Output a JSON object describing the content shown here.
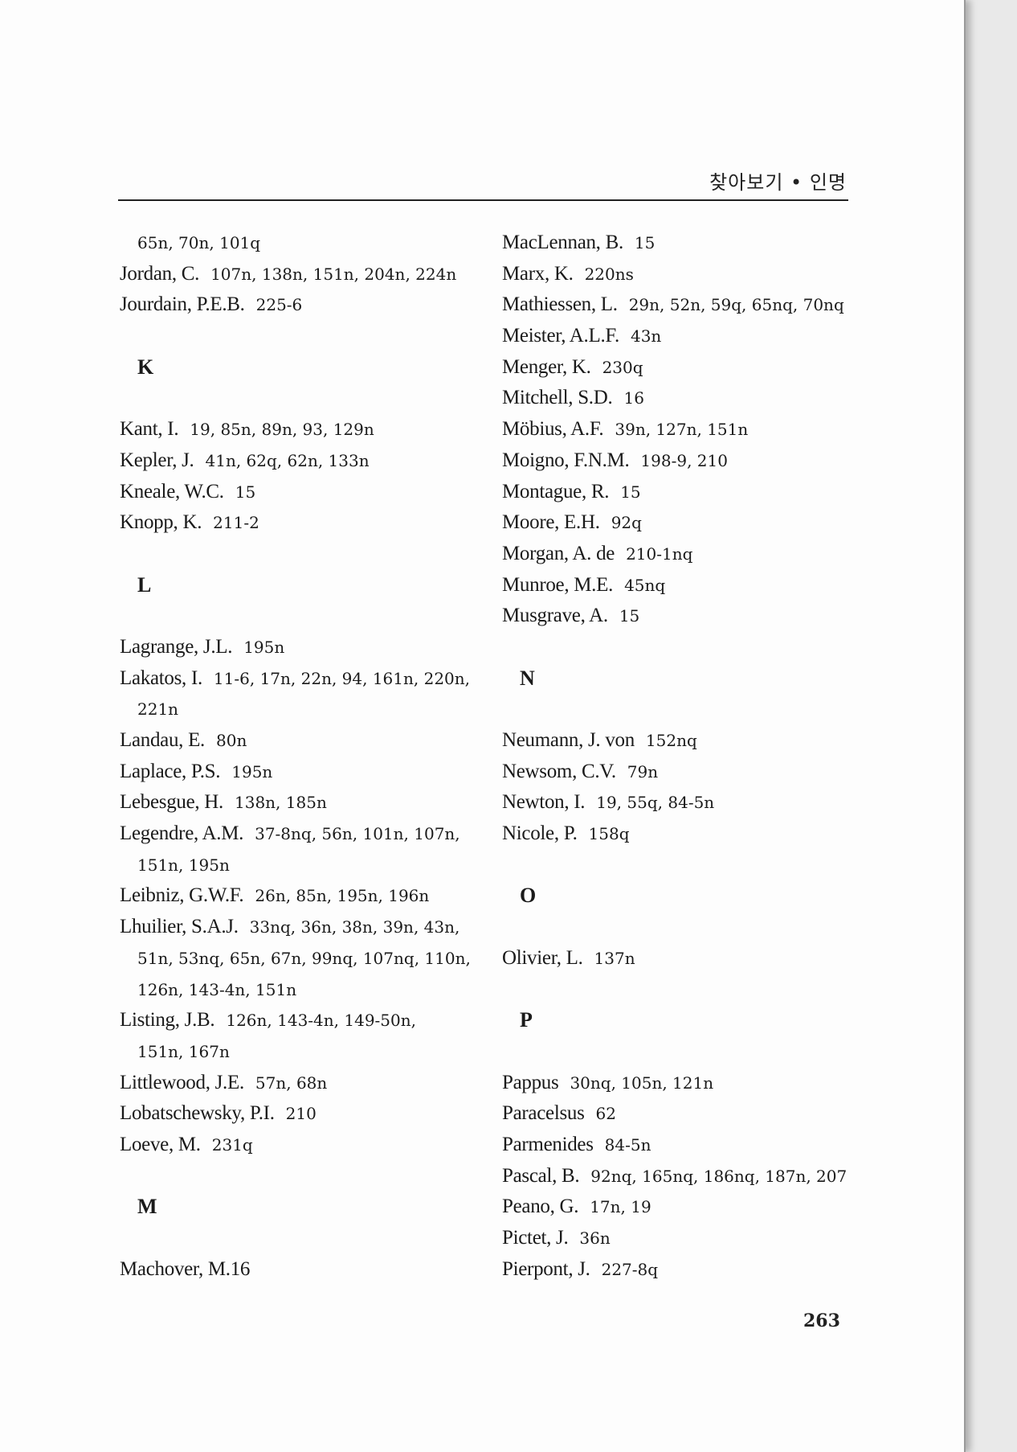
{
  "header": {
    "title": "찾아보기 • 인명"
  },
  "page_number": "263",
  "left_column": [
    {
      "type": "cont",
      "pages": "65n, 70n, 101q"
    },
    {
      "type": "entry",
      "name": "Jordan, C.",
      "pages": "107n, 138n, 151n, 204n, 224n"
    },
    {
      "type": "entry",
      "name": "Jourdain, P.E.B.",
      "pages": "225-6"
    },
    {
      "type": "blank"
    },
    {
      "type": "heading",
      "name": "K"
    },
    {
      "type": "blank"
    },
    {
      "type": "entry",
      "name": "Kant, I.",
      "pages": "19, 85n, 89n, 93, 129n"
    },
    {
      "type": "entry",
      "name": "Kepler, J.",
      "pages": "41n, 62q, 62n, 133n"
    },
    {
      "type": "entry",
      "name": "Kneale, W.C.",
      "pages": "15"
    },
    {
      "type": "entry",
      "name": "Knopp, K.",
      "pages": "211-2"
    },
    {
      "type": "blank"
    },
    {
      "type": "heading",
      "name": "L"
    },
    {
      "type": "blank"
    },
    {
      "type": "entry",
      "name": "Lagrange, J.L.",
      "pages": "195n"
    },
    {
      "type": "entry",
      "name": "Lakatos, I.",
      "pages": "11-6, 17n, 22n, 94, 161n, 220n,"
    },
    {
      "type": "cont",
      "pages": "221n"
    },
    {
      "type": "entry",
      "name": "Landau, E.",
      "pages": "80n"
    },
    {
      "type": "entry",
      "name": "Laplace, P.S.",
      "pages": "195n"
    },
    {
      "type": "entry",
      "name": "Lebesgue, H.",
      "pages": "138n, 185n"
    },
    {
      "type": "entry",
      "name": "Legendre, A.M.",
      "pages": "37-8nq, 56n, 101n, 107n,"
    },
    {
      "type": "cont",
      "pages": "151n, 195n"
    },
    {
      "type": "entry",
      "name": "Leibniz, G.W.F.",
      "pages": "26n, 85n, 195n, 196n"
    },
    {
      "type": "entry",
      "name": "Lhuilier, S.A.J.",
      "pages": "33nq, 36n, 38n, 39n, 43n,"
    },
    {
      "type": "cont",
      "pages": "51n, 53nq, 65n, 67n, 99nq, 107nq, 110n,"
    },
    {
      "type": "cont",
      "pages": "126n, 143-4n, 151n"
    },
    {
      "type": "entry",
      "name": "Listing, J.B.",
      "pages": "126n, 143-4n, 149-50n,"
    },
    {
      "type": "cont",
      "pages": "151n, 167n"
    },
    {
      "type": "entry",
      "name": "Littlewood, J.E.",
      "pages": "57n, 68n"
    },
    {
      "type": "entry",
      "name": "Lobatschewsky, P.I.",
      "pages": "210"
    },
    {
      "type": "entry",
      "name": "Loeve, M.",
      "pages": "231q"
    },
    {
      "type": "blank"
    },
    {
      "type": "heading",
      "name": "M"
    },
    {
      "type": "blank"
    },
    {
      "type": "entry",
      "name": "Machover, M.16",
      "pages": ""
    }
  ],
  "right_column": [
    {
      "type": "entry",
      "name": "MacLennan, B.",
      "pages": "15"
    },
    {
      "type": "entry",
      "name": "Marx, K.",
      "pages": "220ns"
    },
    {
      "type": "entry",
      "name": "Mathiessen, L.",
      "pages": "29n, 52n, 59q, 65nq, 70nq"
    },
    {
      "type": "entry",
      "name": "Meister, A.L.F.",
      "pages": "43n"
    },
    {
      "type": "entry",
      "name": "Menger, K.",
      "pages": "230q"
    },
    {
      "type": "entry",
      "name": "Mitchell, S.D.",
      "pages": "16"
    },
    {
      "type": "entry",
      "name": "Möbius, A.F.",
      "pages": "39n, 127n, 151n"
    },
    {
      "type": "entry",
      "name": "Moigno, F.N.M.",
      "pages": "198-9, 210"
    },
    {
      "type": "entry",
      "name": "Montague, R.",
      "pages": "15"
    },
    {
      "type": "entry",
      "name": "Moore, E.H.",
      "pages": "92q"
    },
    {
      "type": "entry",
      "name": "Morgan, A. de",
      "pages": "210-1nq"
    },
    {
      "type": "entry",
      "name": "Munroe, M.E.",
      "pages": "45nq"
    },
    {
      "type": "entry",
      "name": "Musgrave, A.",
      "pages": "15"
    },
    {
      "type": "blank"
    },
    {
      "type": "heading",
      "name": "N"
    },
    {
      "type": "blank"
    },
    {
      "type": "entry",
      "name": "Neumann, J. von",
      "pages": "152nq"
    },
    {
      "type": "entry",
      "name": "Newsom, C.V.",
      "pages": "79n"
    },
    {
      "type": "entry",
      "name": "Newton, I.",
      "pages": "19, 55q, 84-5n"
    },
    {
      "type": "entry",
      "name": "Nicole, P.",
      "pages": "158q"
    },
    {
      "type": "blank"
    },
    {
      "type": "heading",
      "name": "O"
    },
    {
      "type": "blank"
    },
    {
      "type": "entry",
      "name": "Olivier, L.",
      "pages": "137n"
    },
    {
      "type": "blank"
    },
    {
      "type": "heading",
      "name": "P"
    },
    {
      "type": "blank"
    },
    {
      "type": "entry",
      "name": "Pappus",
      "pages": "30nq, 105n, 121n"
    },
    {
      "type": "entry",
      "name": "Paracelsus",
      "pages": "62"
    },
    {
      "type": "entry",
      "name": "Parmenides",
      "pages": "84-5n"
    },
    {
      "type": "entry",
      "name": "Pascal, B.",
      "pages": "92nq, 165nq, 186nq, 187n, 207"
    },
    {
      "type": "entry",
      "name": "Peano, G.",
      "pages": "17n, 19"
    },
    {
      "type": "entry",
      "name": "Pictet, J.",
      "pages": "36n"
    },
    {
      "type": "entry",
      "name": "Pierpont, J.",
      "pages": "227-8q"
    }
  ]
}
